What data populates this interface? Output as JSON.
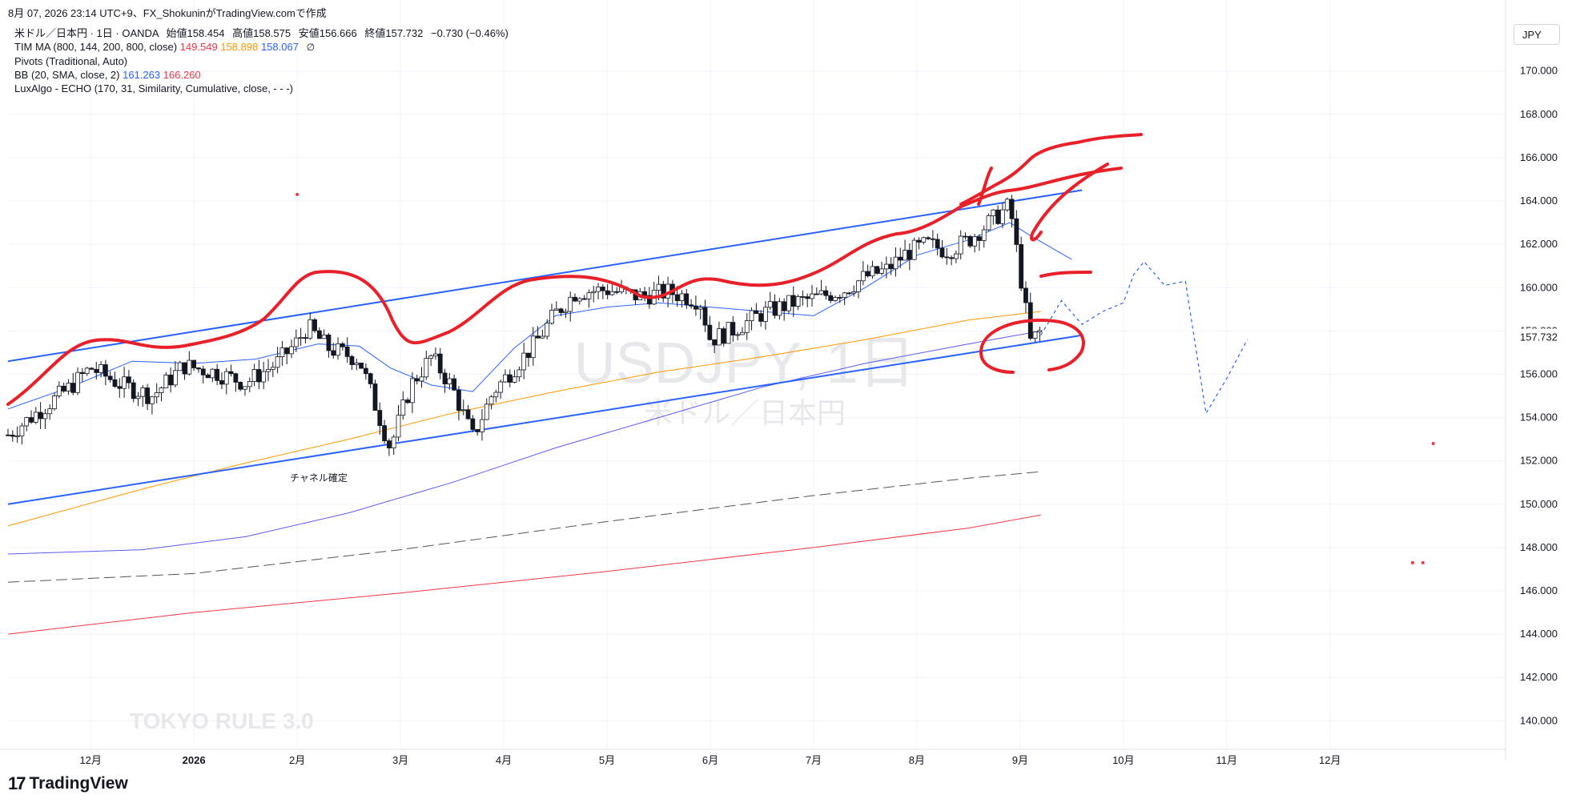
{
  "header": {
    "caption": "8月 07, 2026 23:14 UTC+9、FX_ShokuninがTradingView.comで作成"
  },
  "legend": {
    "symbol": "米ドル／日本円 · 1日 · OANDA",
    "open_label": "始値158.454",
    "high_label": "高値158.575",
    "low_label": "安値156.666",
    "close_label": "終値157.732",
    "change_label": "−0.730 (−0.46%)",
    "tim_ma_label": "TIM MA (800, 144, 200, 800, close)",
    "tim_ma_v1": "149.549",
    "tim_ma_v2": "158.898",
    "tim_ma_v3": "158.067",
    "tim_ma_icon": "∅",
    "pivots_label": "Pivots (Traditional, Auto)",
    "bb_label": "BB (20, SMA, close, 2)",
    "bb_v1": "161.263",
    "bb_v2": "166.260",
    "echo_label": "LuxAlgo - ECHO (170, 31, Similarity, Cumulative, close, - - -)"
  },
  "currency_button": "JPY",
  "watermark": {
    "symbol": "USDJPY, 1日",
    "name": "米ドル／日本円"
  },
  "annotation_text": "チャネル確定",
  "brand_watermark": "TOKYO RULE 3.0",
  "footer": {
    "brand": "TradingView"
  },
  "colors": {
    "up_candle": "#ffffff",
    "down_candle": "#131722",
    "bb_basis": "#2962ff",
    "ma_orange": "#ff9800",
    "ma_purple": "#5b5bf0",
    "ma_red": "#f23645",
    "channel": "#2962ff",
    "drawing_red": "#e8202a",
    "echo_forecast": "#2962ff"
  },
  "chart_data": {
    "type": "candlestick",
    "title": "米ドル／日本円 · 1日 · OANDA",
    "ylim": [
      139.2,
      171.8
    ],
    "y_ticks": [
      140,
      142,
      144,
      146,
      148,
      150,
      152,
      154,
      156,
      158,
      160,
      162,
      164,
      166,
      168,
      170
    ],
    "y_tick_labels": [
      "140.000",
      "142.000",
      "144.000",
      "146.000",
      "148.000",
      "150.000",
      "152.000",
      "154.000",
      "156.000",
      "158.000",
      "160.000",
      "162.000",
      "164.000",
      "166.000",
      "168.000",
      "170.000"
    ],
    "last_price_label": "157.732",
    "last_price": 157.732,
    "x_tick_labels": [
      {
        "label": "12月",
        "month": 1
      },
      {
        "label": "2026",
        "month": 2
      },
      {
        "label": "2月",
        "month": 3
      },
      {
        "label": "3月",
        "month": 4
      },
      {
        "label": "4月",
        "month": 5
      },
      {
        "label": "5月",
        "month": 6
      },
      {
        "label": "6月",
        "month": 7
      },
      {
        "label": "7月",
        "month": 8
      },
      {
        "label": "8月",
        "month": 9
      },
      {
        "label": "9月",
        "month": 10
      },
      {
        "label": "10月",
        "month": 11
      },
      {
        "label": "11月",
        "month": 12
      },
      {
        "label": "12月",
        "month": 13
      }
    ],
    "x_range_months": [
      0.2,
      14.7
    ],
    "candles_path": [
      [
        0.2,
        153.2
      ],
      [
        0.5,
        154.3
      ],
      [
        0.8,
        155.4
      ],
      [
        1.0,
        156.3
      ],
      [
        1.3,
        155.5
      ],
      [
        1.6,
        155.0
      ],
      [
        1.9,
        156.4
      ],
      [
        2.2,
        156.1
      ],
      [
        2.5,
        155.6
      ],
      [
        2.8,
        156.5
      ],
      [
        3.0,
        157.5
      ],
      [
        3.1,
        158.2
      ],
      [
        3.3,
        157.2
      ],
      [
        3.6,
        156.7
      ],
      [
        3.9,
        152.6
      ],
      [
        4.1,
        155.5
      ],
      [
        4.3,
        156.8
      ],
      [
        4.5,
        155.4
      ],
      [
        4.7,
        153.1
      ],
      [
        4.9,
        155.2
      ],
      [
        5.1,
        156.3
      ],
      [
        5.3,
        157.4
      ],
      [
        5.5,
        158.8
      ],
      [
        5.7,
        159.8
      ],
      [
        6.0,
        159.9
      ],
      [
        6.3,
        159.6
      ],
      [
        6.6,
        159.8
      ],
      [
        6.9,
        159.4
      ],
      [
        7.0,
        157.6
      ],
      [
        7.2,
        158.0
      ],
      [
        7.5,
        158.8
      ],
      [
        7.8,
        159.3
      ],
      [
        8.0,
        159.5
      ],
      [
        8.3,
        159.9
      ],
      [
        8.5,
        160.5
      ],
      [
        8.7,
        160.8
      ],
      [
        8.9,
        161.6
      ],
      [
        9.1,
        162.0
      ],
      [
        9.3,
        161.7
      ],
      [
        9.5,
        162.2
      ],
      [
        9.7,
        163.0
      ],
      [
        9.9,
        163.8
      ],
      [
        10.1,
        157.5
      ],
      [
        10.2,
        158.0
      ]
    ],
    "series": [
      {
        "name": "BB basis (20, SMA)",
        "color": "#2962ff",
        "points": [
          [
            0.2,
            154.4
          ],
          [
            0.8,
            155.4
          ],
          [
            1.4,
            156.6
          ],
          [
            2.0,
            156.5
          ],
          [
            2.6,
            156.7
          ],
          [
            3.2,
            157.4
          ],
          [
            3.6,
            157.3
          ],
          [
            3.9,
            156.3
          ],
          [
            4.3,
            155.5
          ],
          [
            4.7,
            155.2
          ],
          [
            5.1,
            157.2
          ],
          [
            5.5,
            158.7
          ],
          [
            6.0,
            159.1
          ],
          [
            6.5,
            159.3
          ],
          [
            7.0,
            159.1
          ],
          [
            7.5,
            158.9
          ],
          [
            8.0,
            158.7
          ],
          [
            8.5,
            160.0
          ],
          [
            9.0,
            161.5
          ],
          [
            9.5,
            162.2
          ],
          [
            9.9,
            163.0
          ],
          [
            10.1,
            162.4
          ],
          [
            10.5,
            161.3
          ]
        ]
      },
      {
        "name": "TIM MA orange",
        "color": "#ff9800",
        "points": [
          [
            0.2,
            149.0
          ],
          [
            1.5,
            150.7
          ],
          [
            2.5,
            151.9
          ],
          [
            3.5,
            153.0
          ],
          [
            4.5,
            154.2
          ],
          [
            5.5,
            155.2
          ],
          [
            6.5,
            156.1
          ],
          [
            7.5,
            156.8
          ],
          [
            8.5,
            157.6
          ],
          [
            9.5,
            158.5
          ],
          [
            10.2,
            158.9
          ]
        ]
      },
      {
        "name": "TIM MA purple",
        "color": "#5b5bf0",
        "points": [
          [
            0.2,
            147.7
          ],
          [
            1.5,
            147.9
          ],
          [
            2.5,
            148.5
          ],
          [
            3.5,
            149.6
          ],
          [
            4.5,
            151.0
          ],
          [
            5.5,
            152.6
          ],
          [
            6.5,
            154.0
          ],
          [
            7.5,
            155.4
          ],
          [
            8.5,
            156.5
          ],
          [
            9.5,
            157.4
          ],
          [
            10.2,
            158.0
          ]
        ]
      },
      {
        "name": "TIM MA red",
        "color": "#f23645",
        "points": [
          [
            0.2,
            144.0
          ],
          [
            2.0,
            145.0
          ],
          [
            4.0,
            145.9
          ],
          [
            6.0,
            146.9
          ],
          [
            8.0,
            148.0
          ],
          [
            9.5,
            148.9
          ],
          [
            10.2,
            149.5
          ]
        ]
      },
      {
        "name": "TIM MA dashed",
        "color": "#555555",
        "points": [
          [
            0.2,
            146.4
          ],
          [
            2.0,
            146.8
          ],
          [
            4.0,
            147.9
          ],
          [
            6.0,
            149.2
          ],
          [
            8.0,
            150.4
          ],
          [
            9.5,
            151.2
          ],
          [
            10.2,
            151.5
          ]
        ]
      }
    ],
    "channel_lines": [
      {
        "name": "upper",
        "points": [
          [
            0.2,
            156.6
          ],
          [
            10.6,
            164.5
          ]
        ]
      },
      {
        "name": "lower",
        "points": [
          [
            0.2,
            150.0
          ],
          [
            10.6,
            157.8
          ]
        ]
      }
    ],
    "echo_forecast": [
      [
        10.2,
        157.8
      ],
      [
        10.4,
        159.4
      ],
      [
        10.6,
        158.3
      ],
      [
        10.8,
        158.9
      ],
      [
        11.0,
        159.3
      ],
      [
        11.1,
        160.6
      ],
      [
        11.2,
        161.2
      ],
      [
        11.4,
        160.1
      ],
      [
        11.6,
        160.3
      ],
      [
        11.8,
        154.2
      ],
      [
        12.0,
        155.8
      ],
      [
        12.2,
        157.6
      ]
    ],
    "pivot_dots": [
      [
        3.0,
        164.3
      ],
      [
        14.0,
        152.8
      ],
      [
        13.8,
        147.3
      ],
      [
        13.9,
        147.3
      ]
    ]
  }
}
